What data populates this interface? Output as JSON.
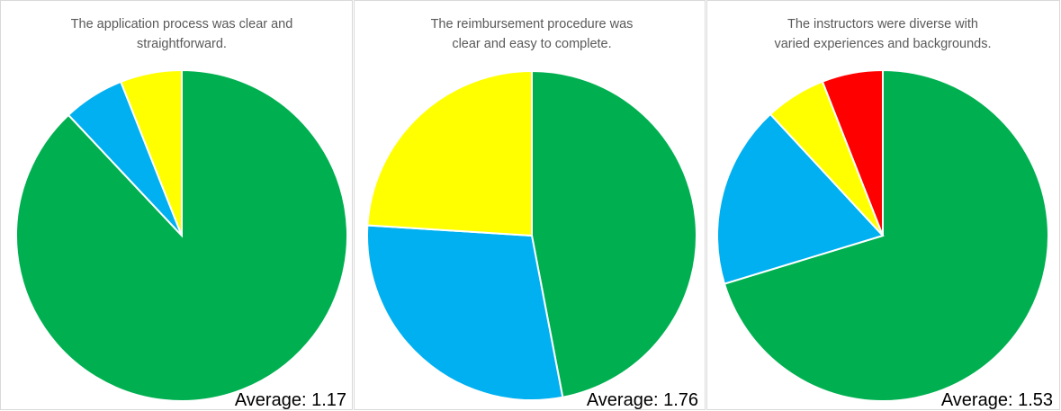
{
  "chart_data": [
    {
      "type": "pie",
      "title": [
        "The application process was clear and",
        "straightforward."
      ],
      "values": [
        88,
        6,
        6
      ],
      "colors": [
        "#00b050",
        "#00b0f0",
        "#ffff00"
      ],
      "annotation": "Average: 1.17"
    },
    {
      "type": "pie",
      "title": [
        "The reimbursement procedure was",
        "clear and easy to complete."
      ],
      "values": [
        47,
        29,
        24
      ],
      "colors": [
        "#00b050",
        "#00b0f0",
        "#ffff00"
      ],
      "annotation": "Average: 1.76"
    },
    {
      "type": "pie",
      "title": [
        "The instructors were diverse with",
        "varied experiences and backgrounds."
      ],
      "values": [
        71,
        18,
        6,
        6
      ],
      "colors": [
        "#00b050",
        "#00b0f0",
        "#ffff00",
        "#ff0000"
      ],
      "annotation": "Average: 1.53"
    }
  ]
}
